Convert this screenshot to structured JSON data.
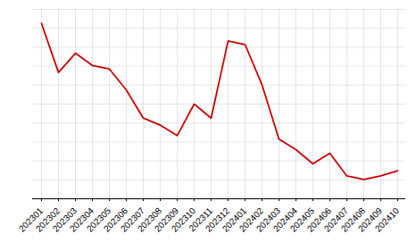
{
  "chart_data": {
    "type": "line",
    "categories": [
      "202301",
      "202302",
      "202303",
      "202304",
      "202305",
      "202306",
      "202307",
      "202308",
      "202309",
      "202310",
      "202311",
      "202312",
      "202401",
      "202402",
      "202403",
      "202404",
      "202405",
      "202406",
      "202407",
      "202408",
      "202409",
      "202410"
    ],
    "values": [
      100,
      72,
      83,
      76,
      74,
      62,
      46,
      42,
      36,
      54,
      46,
      90,
      88,
      65,
      34,
      28,
      20,
      26,
      13,
      11,
      13,
      16
    ],
    "color": "#cc0000",
    "ylim": [
      0,
      108
    ],
    "yticks": [
      0,
      10.8,
      21.6,
      32.4,
      43.2,
      54,
      64.8,
      75.6,
      86.4,
      97.2,
      108
    ],
    "grid": true,
    "tick_labels": "x"
  }
}
